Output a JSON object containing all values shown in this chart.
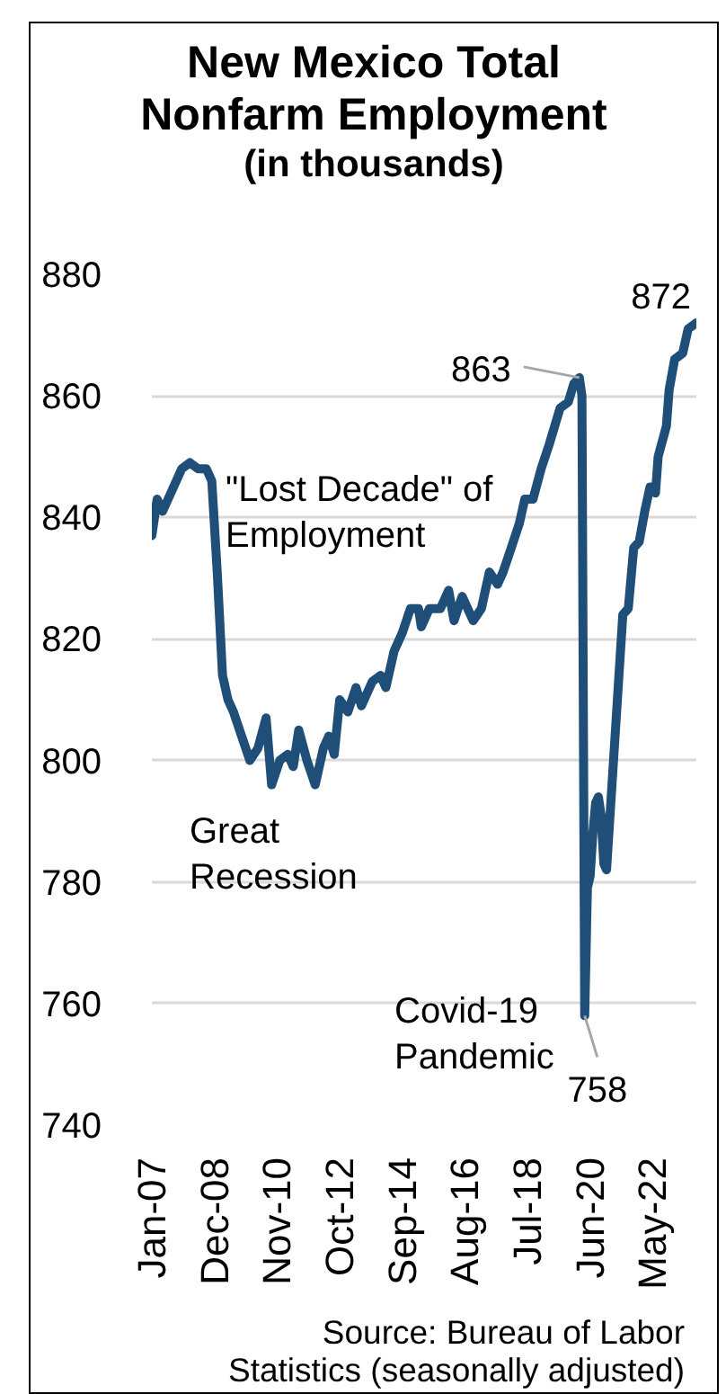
{
  "chart_data": {
    "type": "line",
    "title": "New Mexico Total\nNonfarm Employment",
    "subtitle": "(in thousands)",
    "x": [
      "2007-01",
      "2007-03",
      "2007-05",
      "2007-08",
      "2007-12",
      "2008-03",
      "2008-06",
      "2008-09",
      "2008-11",
      "2009-01",
      "2009-03",
      "2009-05",
      "2009-07",
      "2009-10",
      "2010-01",
      "2010-04",
      "2010-07",
      "2010-09",
      "2010-12",
      "2011-03",
      "2011-05",
      "2011-07",
      "2011-10",
      "2012-01",
      "2012-04",
      "2012-06",
      "2012-08",
      "2012-10",
      "2013-01",
      "2013-04",
      "2013-06",
      "2013-10",
      "2014-01",
      "2014-03",
      "2014-06",
      "2014-09",
      "2014-12",
      "2015-03",
      "2015-04",
      "2015-07",
      "2015-11",
      "2016-02",
      "2016-04",
      "2016-07",
      "2016-11",
      "2017-02",
      "2017-05",
      "2017-08",
      "2017-10",
      "2018-01",
      "2018-04",
      "2018-06",
      "2018-09",
      "2018-12",
      "2019-03",
      "2019-07",
      "2019-10",
      "2019-12",
      "2020-02",
      "2020-03",
      "2020-04",
      "2020-05",
      "2020-06",
      "2020-07",
      "2020-08",
      "2020-09",
      "2020-10",
      "2020-11",
      "2020-12",
      "2021-06",
      "2021-08",
      "2021-10",
      "2021-12",
      "2022-02",
      "2022-04",
      "2022-06",
      "2022-07",
      "2022-10",
      "2022-11",
      "2023-01",
      "2023-04",
      "2023-06",
      "2023-09"
    ],
    "series": [
      {
        "color": "#1f4e79",
        "values": [
          837,
          843,
          841,
          844,
          848,
          849,
          848,
          848,
          846,
          831,
          814,
          810,
          808,
          804,
          800,
          802,
          807,
          796,
          800,
          801,
          799,
          805,
          800,
          796,
          802,
          804,
          801,
          810,
          808,
          812,
          809,
          813,
          814,
          812,
          818,
          821,
          825,
          825,
          822,
          825,
          825,
          828,
          823,
          827,
          823,
          825,
          831,
          829,
          831,
          835,
          839,
          843,
          843,
          848,
          852,
          858,
          859,
          862,
          863,
          860,
          758,
          779,
          781,
          788,
          793,
          794,
          791,
          783,
          782,
          824,
          825,
          835,
          836,
          841,
          845,
          844,
          850,
          855,
          861,
          866,
          867,
          871,
          872
        ]
      }
    ],
    "xlim": [
      "2007-01",
      "2023-09"
    ],
    "xticks": [
      {
        "value": "2007-01",
        "label": "Jan-07"
      },
      {
        "value": "2008-12",
        "label": "Dec-08"
      },
      {
        "value": "2010-11",
        "label": "Nov-10"
      },
      {
        "value": "2012-10",
        "label": "Oct-12"
      },
      {
        "value": "2014-09",
        "label": "Sep-14"
      },
      {
        "value": "2016-08",
        "label": "Aug-16"
      },
      {
        "value": "2018-07",
        "label": "Jul-18"
      },
      {
        "value": "2020-06",
        "label": "Jun-20"
      },
      {
        "value": "2022-05",
        "label": "May-22"
      }
    ],
    "ylim": [
      740,
      880
    ],
    "yticks": [
      740,
      760,
      780,
      800,
      820,
      840,
      860,
      880
    ],
    "grid": "y",
    "annotations": [
      "\"Lost Decade\" of\nEmployment",
      "Great\nRecession",
      {
        "text": "863",
        "x": "2020-02",
        "y": 863
      },
      "Covid-19\nPandemic",
      {
        "text": "758",
        "x": "2020-04",
        "y": 758
      },
      {
        "text": "872",
        "x": "2023-09",
        "y": 872
      },
      "Source: Bureau of Labor\nStatistics (seasonally adjusted)"
    ]
  }
}
